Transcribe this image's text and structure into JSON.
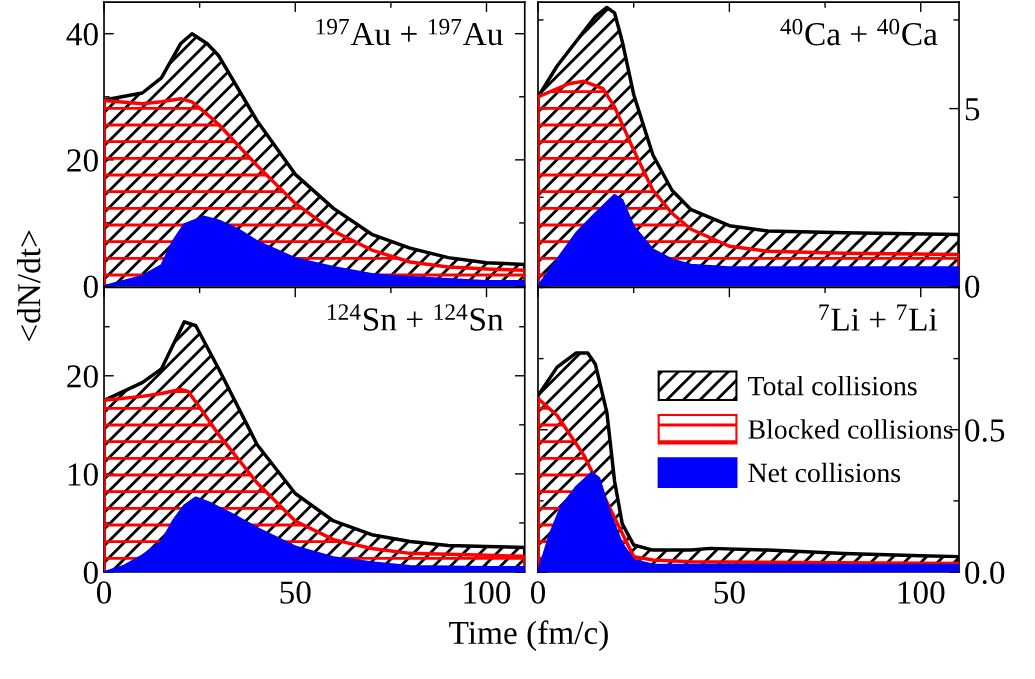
{
  "chart_data": [
    {
      "type": "area",
      "annotations": [
        "$^{197}$Au + $^{197}$Au"
      ],
      "ylabel": "<dN/dt>",
      "xlim": [
        0,
        110
      ],
      "xticks": [
        0,
        50,
        100
      ],
      "ylim": [
        0,
        45
      ],
      "yticks": [
        0,
        20,
        40
      ],
      "tick_labels": "y",
      "grid": false,
      "legend": false,
      "series": [
        {
          "color": "#000000",
          "x": [
            0,
            10,
            15,
            20,
            23,
            27,
            30,
            40,
            50,
            60,
            70,
            80,
            90,
            100,
            110
          ],
          "values": [
            29.5,
            30.6,
            33,
            38.4,
            40,
            38.4,
            36.5,
            26.2,
            17.7,
            12.3,
            8.2,
            6,
            4.5,
            3.7,
            3.4
          ]
        },
        {
          "color": "#ff0000",
          "x": [
            0,
            10,
            15,
            20,
            23,
            27,
            30,
            40,
            50,
            60,
            70,
            80,
            90,
            100,
            110
          ],
          "values": [
            29.4,
            28.9,
            29.2,
            29.7,
            29.2,
            27.2,
            25.6,
            19.1,
            13.1,
            8.7,
            5.7,
            3.8,
            3,
            2.7,
            2.5
          ]
        },
        {
          "color": "#0000ff",
          "x": [
            0,
            5,
            10,
            15,
            18,
            21,
            26,
            30,
            35,
            40,
            50,
            60,
            70,
            80,
            90,
            100,
            110
          ],
          "values": [
            0,
            0.8,
            1.6,
            3.3,
            7.1,
            9.8,
            11,
            10.4,
            9,
            7.1,
            4.4,
            3,
            1.9,
            1.4,
            1.1,
            0.8,
            0.8
          ]
        }
      ]
    },
    {
      "type": "area",
      "annotations": [
        "$^{40}$Ca + $^{40}$Ca"
      ],
      "xlim": [
        0,
        110
      ],
      "xticks": [
        0,
        50,
        100
      ],
      "ylim": [
        0,
        8
      ],
      "yticks": [
        0,
        5
      ],
      "tick_labels": "y",
      "grid": false,
      "legend": false,
      "series": [
        {
          "color": "#000000",
          "x": [
            0,
            5,
            10,
            15,
            18,
            20,
            22,
            25,
            30,
            35,
            40,
            50,
            60,
            80,
            110
          ],
          "values": [
            5.33,
            6.2,
            6.9,
            7.6,
            7.85,
            7.7,
            6.9,
            5.4,
            3.7,
            2.7,
            2.15,
            1.7,
            1.55,
            1.5,
            1.45
          ]
        },
        {
          "color": "#ff0000",
          "x": [
            0,
            8,
            12,
            17,
            20,
            25,
            30,
            35,
            40,
            50,
            60,
            80,
            110
          ],
          "values": [
            5.33,
            5.7,
            5.77,
            5.56,
            5.05,
            3.83,
            2.7,
            2.05,
            1.6,
            1.12,
            0.98,
            0.92,
            0.89
          ]
        },
        {
          "color": "#0000ff",
          "x": [
            0,
            5,
            10,
            15,
            20,
            22,
            25,
            30,
            35,
            40,
            50,
            110
          ],
          "values": [
            0,
            0.75,
            1.5,
            2.05,
            2.57,
            2.43,
            1.68,
            1.03,
            0.75,
            0.6,
            0.53,
            0.53
          ]
        }
      ]
    },
    {
      "type": "area",
      "annotations": [
        "$^{124}$Sn + $^{124}$Sn"
      ],
      "xlabel": "Time (fm/c)",
      "xlim": [
        0,
        110
      ],
      "xticks": [
        0,
        50,
        100
      ],
      "ylim": [
        0,
        29
      ],
      "yticks": [
        0,
        10,
        20
      ],
      "grid": false,
      "legend": false,
      "series": [
        {
          "color": "#000000",
          "x": [
            0,
            10,
            15,
            19,
            21,
            24,
            30,
            40,
            50,
            60,
            70,
            80,
            90,
            100,
            110
          ],
          "values": [
            17.5,
            19.3,
            20.7,
            23.9,
            25.5,
            25.1,
            20.7,
            13,
            8,
            5.2,
            3.8,
            3.1,
            2.7,
            2.6,
            2.5
          ]
        },
        {
          "color": "#ff0000",
          "x": [
            0,
            10,
            15,
            20,
            22,
            25,
            30,
            40,
            50,
            60,
            70,
            80,
            100,
            110
          ],
          "values": [
            17.5,
            17.9,
            18.2,
            18.6,
            18.4,
            16.8,
            14,
            9.1,
            5.2,
            3.3,
            2.4,
            1.9,
            1.7,
            1.6
          ]
        },
        {
          "color": "#0000ff",
          "x": [
            0,
            5,
            10,
            15,
            18,
            21,
            24,
            28,
            35,
            40,
            50,
            60,
            70,
            80,
            100,
            110
          ],
          "values": [
            0,
            0.6,
            1.7,
            3.1,
            5.2,
            6.8,
            7.6,
            7,
            5.6,
            4.5,
            2.6,
            1.5,
            1,
            0.6,
            0.5,
            0.5
          ]
        }
      ]
    },
    {
      "type": "area",
      "annotations": [
        "$^{7}$Li + $^{7}$Li"
      ],
      "xlim": [
        0,
        110
      ],
      "xticks": [
        0,
        50,
        100
      ],
      "ylim": [
        0,
        1.0
      ],
      "yticks": [
        {
          "value": 0,
          "label": "0.0"
        },
        0.5
      ],
      "grid": false,
      "legend": "right",
      "series": [
        {
          "name": "Total collisions",
          "color": "#000000",
          "x": [
            0,
            5,
            10,
            13,
            15,
            18,
            20,
            22,
            25,
            30,
            40,
            45,
            60,
            80,
            100,
            110
          ],
          "values": [
            0.62,
            0.72,
            0.77,
            0.77,
            0.73,
            0.56,
            0.32,
            0.17,
            0.095,
            0.077,
            0.077,
            0.083,
            0.077,
            0.065,
            0.057,
            0.054
          ]
        },
        {
          "name": "Blocked collisions",
          "color": "#ff0000",
          "x": [
            0,
            5,
            10,
            12,
            25,
            30,
            40,
            110
          ],
          "values": [
            0.61,
            0.55,
            0.45,
            0.41,
            0.054,
            0.042,
            0.036,
            0.03
          ]
        },
        {
          "name": "Net collisions",
          "color": "#0000ff",
          "x": [
            0,
            3,
            6,
            10,
            14,
            16,
            19,
            22,
            25,
            30,
            110
          ],
          "values": [
            0,
            0.13,
            0.23,
            0.3,
            0.35,
            0.33,
            0.2,
            0.1,
            0.042,
            0.026,
            0.024
          ]
        }
      ]
    }
  ]
}
